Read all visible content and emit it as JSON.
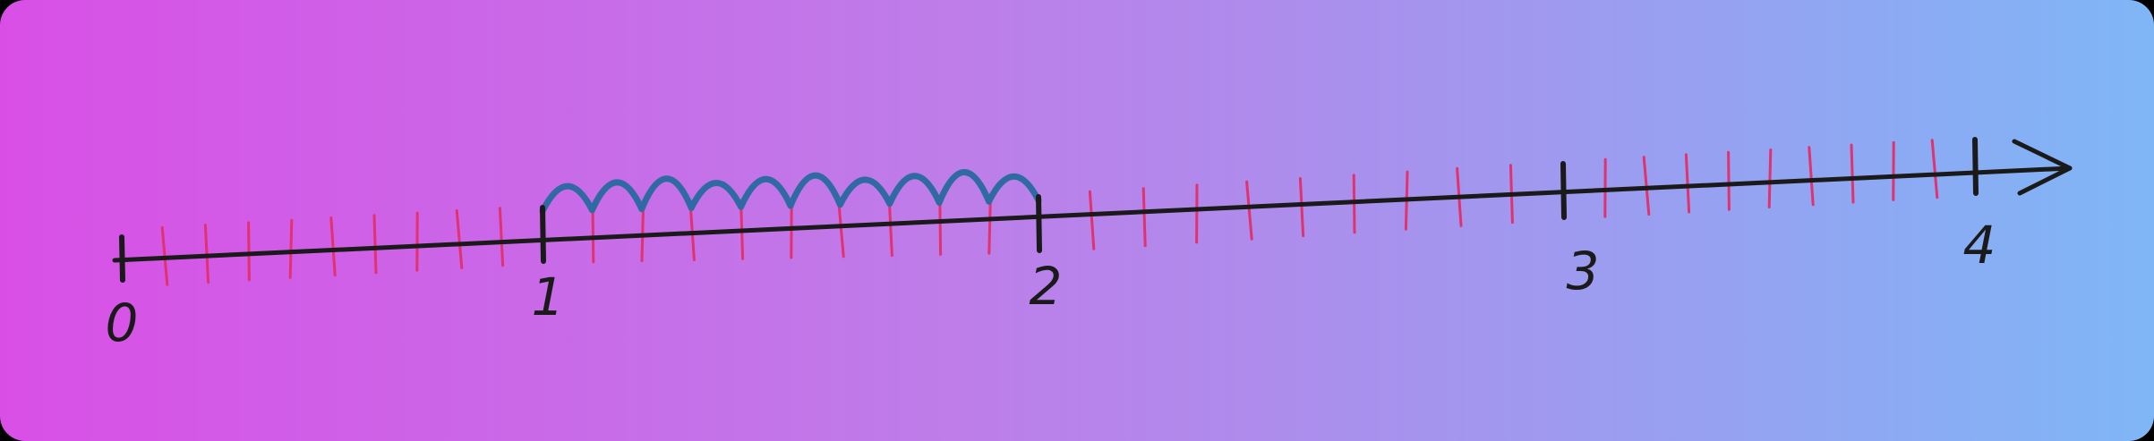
{
  "diagram": {
    "type": "number-line",
    "background": {
      "from": "#d94fe6",
      "mid": "#bd7ee9",
      "to": "#7fb6f6"
    },
    "colors": {
      "axis": "#1a1a1a",
      "minor_tick": "#e0326e",
      "jump_arc": "#2f6aa3"
    },
    "range": [
      0,
      4
    ],
    "subdivisions_per_unit": 10,
    "labels": [
      {
        "value": 0,
        "text": "0"
      },
      {
        "value": 1,
        "text": "1"
      },
      {
        "value": 2,
        "text": "2"
      },
      {
        "value": 3,
        "text": "3"
      },
      {
        "value": 4,
        "text": "4"
      }
    ],
    "jumps": {
      "from": 1,
      "to": 2,
      "count": 10
    },
    "arrow": "right"
  }
}
